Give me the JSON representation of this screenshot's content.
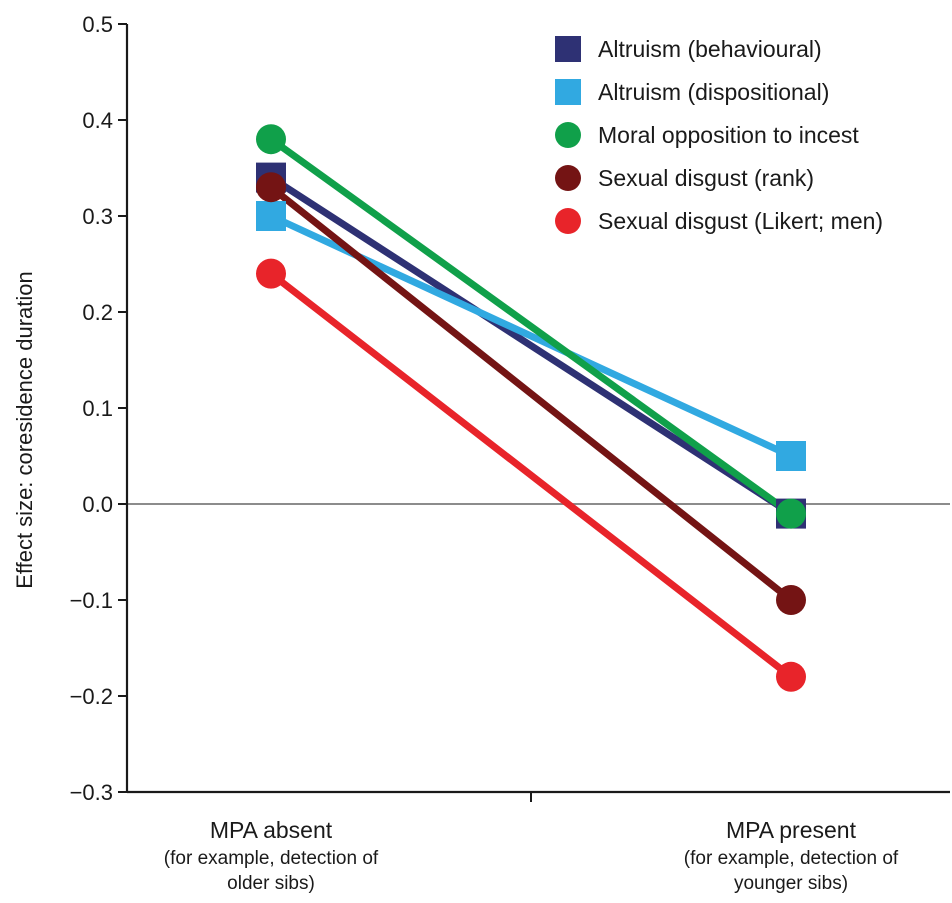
{
  "chart_data": {
    "type": "line",
    "title": "",
    "ylabel": "Effect size: coresidence duration",
    "xlabel": "",
    "ylim": [
      -0.3,
      0.5
    ],
    "yticks": [
      0.5,
      0.4,
      0.3,
      0.2,
      0.1,
      0.0,
      -0.1,
      -0.2,
      -0.3
    ],
    "ytick_labels": [
      "0.5",
      "0.4",
      "0.3",
      "0.2",
      "0.1",
      "0.0",
      "−0.1",
      "−0.2",
      "−0.3"
    ],
    "zero_reference_line": true,
    "grid": false,
    "legend_position": "top-right",
    "categories": [
      {
        "label": "MPA absent",
        "sub1": "(for example, detection of",
        "sub2": "older sibs)"
      },
      {
        "label": "MPA present",
        "sub1": "(for example, detection of",
        "sub2": "younger sibs)"
      }
    ],
    "series": [
      {
        "name": "Altruism (behavioural)",
        "marker": "square",
        "color": "#2e3174",
        "values": [
          0.34,
          -0.01
        ]
      },
      {
        "name": "Altruism (dispositional)",
        "marker": "square",
        "color": "#31a9e1",
        "values": [
          0.3,
          0.05
        ]
      },
      {
        "name": "Moral opposition to incest",
        "marker": "circle",
        "color": "#10a04a",
        "values": [
          0.38,
          -0.01
        ]
      },
      {
        "name": "Sexual disgust (rank)",
        "marker": "circle",
        "color": "#741414",
        "values": [
          0.33,
          -0.1
        ]
      },
      {
        "name": "Sexual disgust (Likert; men)",
        "marker": "circle",
        "color": "#e8242a",
        "values": [
          0.24,
          -0.18
        ]
      }
    ]
  }
}
